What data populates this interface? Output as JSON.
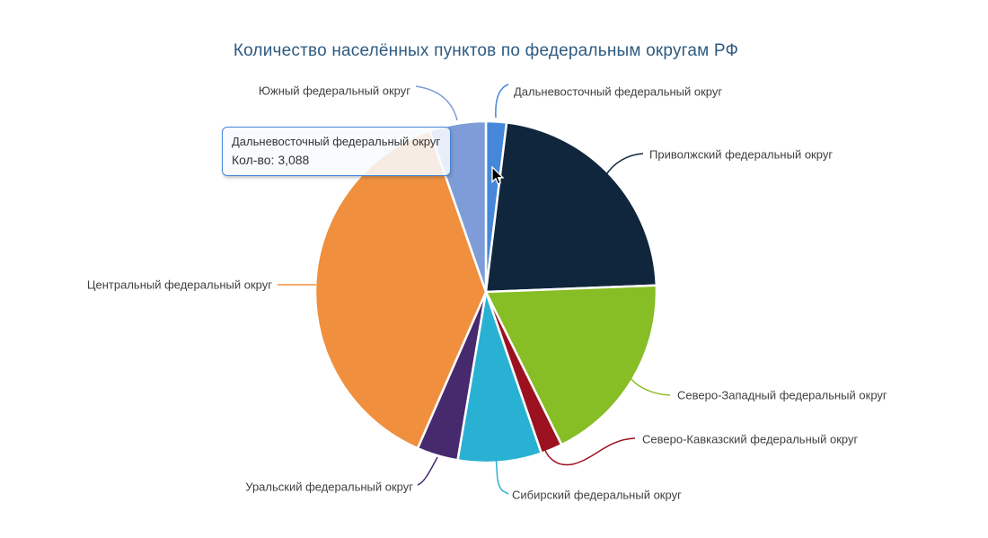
{
  "tooltip": {
    "header": "Дальневосточный федеральный округ",
    "series_label": "Кол-во:",
    "value": "3,088",
    "border_color": "#4587d9",
    "background": "rgba(248,251,255,0.86)"
  },
  "chart_data": {
    "type": "pie",
    "title": "Количество населённых пунктов по федеральным округам РФ",
    "series_name": "Кол-во",
    "legend_position": "none",
    "start_angle_deg": 0,
    "direction": "clockwise",
    "hovered_category": "Дальневосточный федеральный округ",
    "hovered_value_label": "3,088",
    "categories": [
      "Дальневосточный федеральный округ",
      "Приволжский федеральный округ",
      "Северо-Западный федеральный округ",
      "Северо-Кавказский федеральный округ",
      "Сибирский федеральный округ",
      "Уральский федеральный округ",
      "Центральный федеральный округ",
      "Южный федеральный округ"
    ],
    "values": [
      3088,
      35700,
      29100,
      3250,
      12600,
      6200,
      60600,
      8500
    ],
    "colors": [
      "#4587d9",
      "#10263c",
      "#87bd25",
      "#9c1120",
      "#29b1d3",
      "#472a6e",
      "#f0903e",
      "#7e9dd8"
    ],
    "title_color": "#2f5b82",
    "label_color": "#3f3f3f"
  }
}
